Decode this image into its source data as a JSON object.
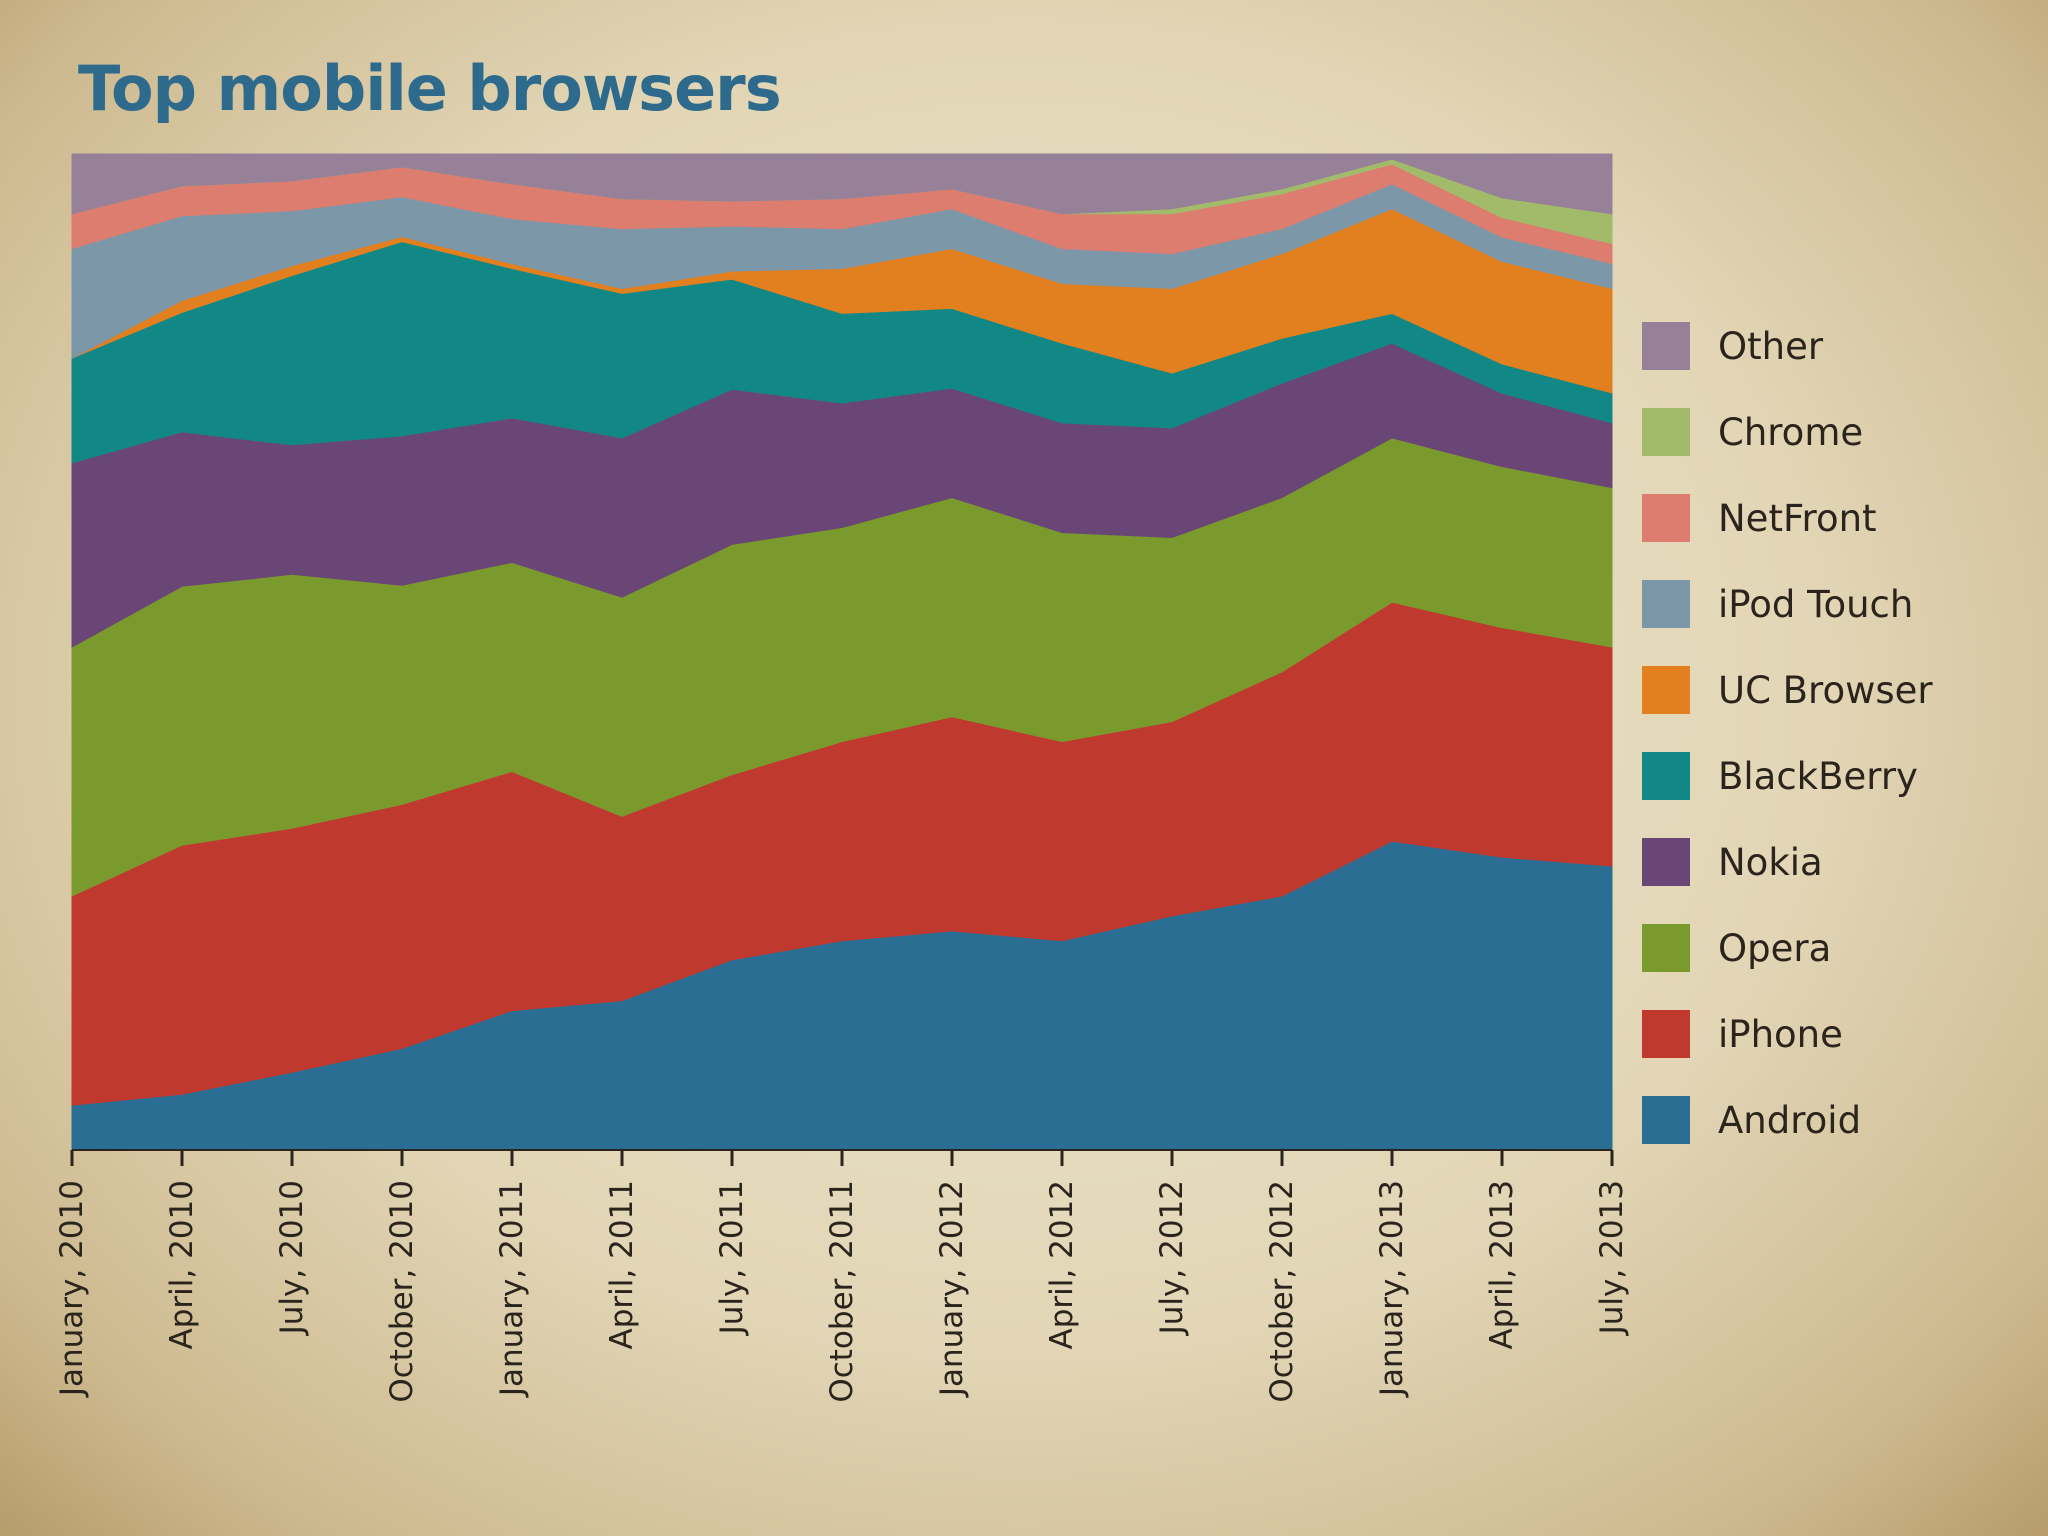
{
  "chart_data": {
    "type": "area",
    "stacked": true,
    "normalized": true,
    "title": "Top mobile browsers",
    "xlabel": "",
    "ylabel": "",
    "ylim": [
      0,
      100
    ],
    "x": [
      "January, 2010",
      "April, 2010",
      "July, 2010",
      "October, 2010",
      "January, 2011",
      "April, 2011",
      "July, 2011",
      "October, 2011",
      "January, 2012",
      "April, 2012",
      "July, 2012",
      "October, 2012",
      "January, 2013",
      "April, 2013",
      "July, 2013"
    ],
    "series": [
      {
        "name": "Android",
        "color": "#2a6f93",
        "values": [
          4.5,
          5.6,
          7.8,
          10.2,
          14,
          15,
          19,
          21,
          22,
          21,
          23.5,
          25.5,
          31,
          30,
          28.5
        ]
      },
      {
        "name": "iPhone",
        "color": "#c0392f",
        "values": [
          21,
          25,
          24.5,
          24.5,
          24,
          18.5,
          18.5,
          20,
          21.5,
          20,
          19.5,
          22.5,
          24,
          23.5,
          22
        ]
      },
      {
        "name": "Opera",
        "color": "#7a9a2e",
        "values": [
          25,
          26,
          25.5,
          22,
          21,
          22,
          23,
          21.5,
          22,
          21,
          18.5,
          17.5,
          16.5,
          16.5,
          16
        ]
      },
      {
        "name": "Nokia",
        "color": "#6a4676",
        "values": [
          18.5,
          15.5,
          13,
          15,
          14.5,
          16,
          15.5,
          12.5,
          11,
          11,
          11,
          11.5,
          9.5,
          7.5,
          6.5
        ]
      },
      {
        "name": "BlackBerry",
        "color": "#128886",
        "values": [
          10.5,
          12,
          17,
          19.5,
          15,
          14.5,
          11,
          9,
          8,
          8,
          5.5,
          4.5,
          3,
          3,
          3
        ]
      },
      {
        "name": "UC Browser",
        "color": "#e27f1f",
        "values": [
          0,
          1.2,
          1,
          0.5,
          0.5,
          0.5,
          0.8,
          4.5,
          6,
          6,
          8.5,
          8.5,
          10.5,
          10.5,
          10.5
        ]
      },
      {
        "name": "iPod Touch",
        "color": "#7c97a8",
        "values": [
          11,
          8.5,
          5.5,
          4,
          4.5,
          6,
          4.5,
          4,
          4,
          3.5,
          3.5,
          2.5,
          2.5,
          2.5,
          2.5
        ]
      },
      {
        "name": "NetFront",
        "color": "#dc7d70",
        "values": [
          3.5,
          3,
          3,
          3,
          3.5,
          3,
          2.5,
          3,
          2,
          3.5,
          4,
          3.5,
          2,
          2,
          2
        ]
      },
      {
        "name": "Chrome",
        "color": "#a1bb6a",
        "values": [
          0,
          0,
          0,
          0,
          0,
          0,
          0,
          0,
          0,
          0,
          0.5,
          0.5,
          0.5,
          2,
          3
        ]
      },
      {
        "name": "Other",
        "color": "#978198",
        "values": [
          6,
          3.2,
          2.7,
          1.3,
          3,
          4.5,
          4.7,
          4.5,
          3.5,
          6,
          5.5,
          3.5,
          0.5,
          4.5,
          6
        ]
      }
    ],
    "legend": {
      "position": "right",
      "order": [
        "Other",
        "Chrome",
        "NetFront",
        "iPod Touch",
        "UC Browser",
        "BlackBerry",
        "Nokia",
        "Opera",
        "iPhone",
        "Android"
      ]
    }
  }
}
